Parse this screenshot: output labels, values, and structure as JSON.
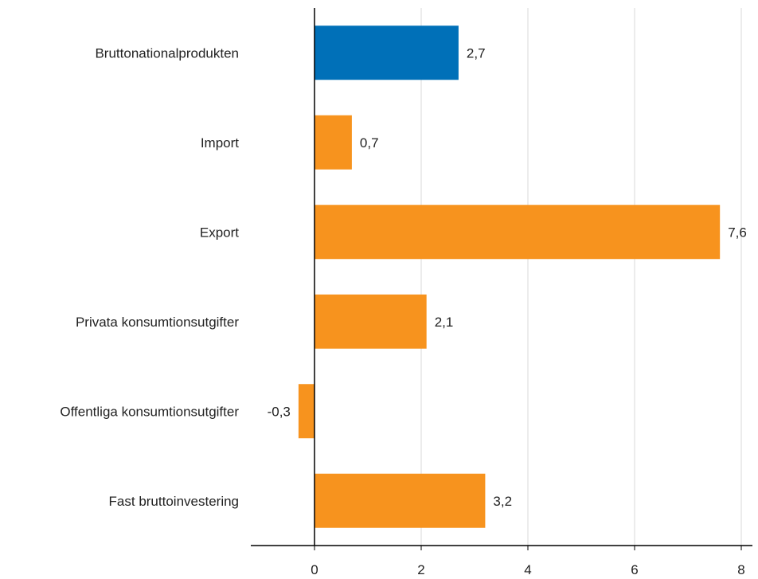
{
  "chart_data": {
    "type": "bar",
    "orientation": "horizontal",
    "title": "",
    "xlabel": "",
    "ylabel": "",
    "categories": [
      "Bruttonationalprodukten",
      "Import",
      "Export",
      "Privata konsumtionsutgifter",
      "Offentliga konsumtionsutgifter",
      "Fast bruttoinvestering"
    ],
    "values": [
      2.7,
      0.7,
      7.6,
      2.1,
      -0.3,
      3.2
    ],
    "value_labels": [
      "2,7",
      "0,7",
      "7,6",
      "2,1",
      "-0,3",
      "3,2"
    ],
    "bar_colors": [
      "#0070b8",
      "#f7931e",
      "#f7931e",
      "#f7931e",
      "#f7931e",
      "#f7931e"
    ],
    "xlim": [
      -1.2,
      8
    ],
    "xticks": [
      0,
      2,
      4,
      6,
      8
    ],
    "xtick_labels": [
      "0",
      "2",
      "4",
      "6",
      "8"
    ],
    "grid": true,
    "grid_color": "#d9d9d9",
    "axis_color": "#000000"
  }
}
